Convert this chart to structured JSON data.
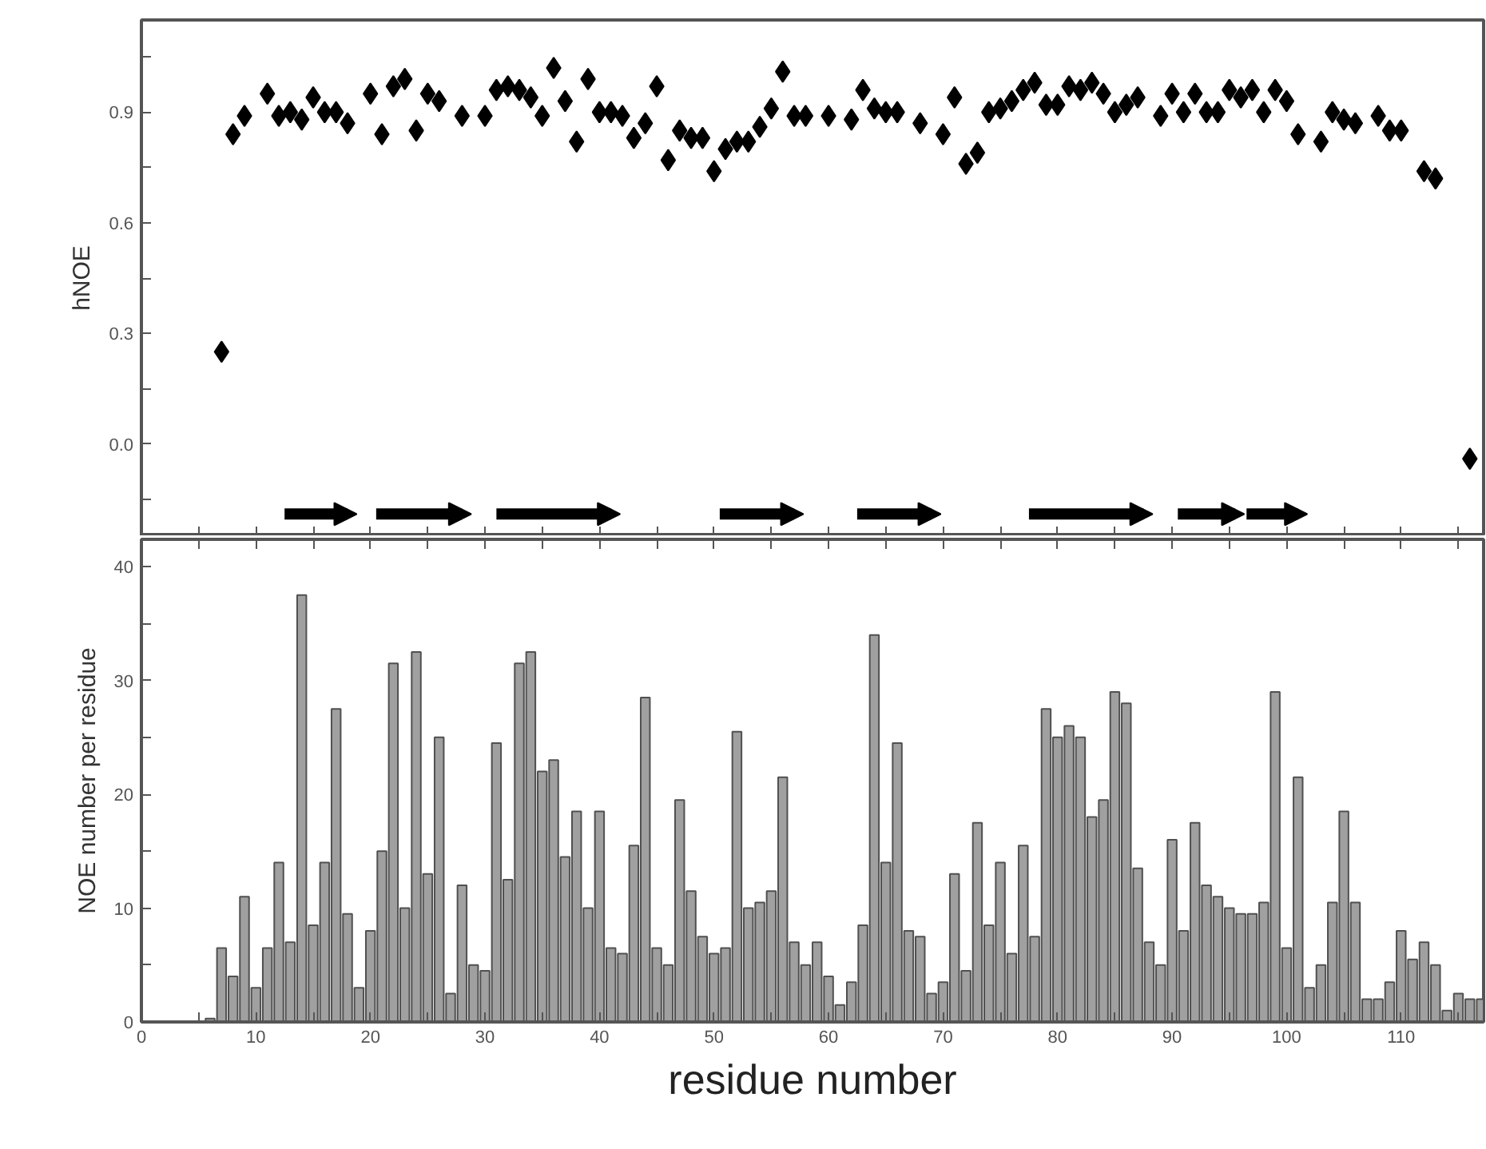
{
  "chart_data": [
    {
      "type": "scatter",
      "ylabel": "hNOE",
      "tick_labels": "y",
      "x": [
        7,
        8,
        9,
        11,
        12,
        13,
        14,
        15,
        16,
        17,
        18,
        20,
        21,
        22,
        23,
        24,
        25,
        26,
        28,
        30,
        31,
        32,
        33,
        34,
        35,
        36,
        37,
        38,
        39,
        40,
        41,
        42,
        43,
        44,
        45,
        46,
        47,
        48,
        49,
        50,
        51,
        52,
        53,
        54,
        55,
        56,
        57,
        58,
        60,
        62,
        63,
        64,
        65,
        66,
        68,
        70,
        71,
        72,
        73,
        74,
        75,
        76,
        77,
        78,
        79,
        80,
        81,
        82,
        83,
        84,
        85,
        86,
        87,
        89,
        90,
        91,
        92,
        93,
        94,
        95,
        96,
        97,
        98,
        99,
        100,
        101,
        103,
        104,
        105,
        106,
        108,
        109,
        110,
        112,
        113,
        116
      ],
      "series": [
        {
          "color": "#000000",
          "marker": "diamond",
          "values": [
            0.25,
            0.84,
            0.89,
            0.95,
            0.89,
            0.9,
            0.88,
            0.94,
            0.9,
            0.9,
            0.87,
            0.95,
            0.84,
            0.97,
            0.99,
            0.85,
            0.95,
            0.93,
            0.89,
            0.89,
            0.96,
            0.97,
            0.96,
            0.94,
            0.89,
            1.02,
            0.93,
            0.82,
            0.99,
            0.9,
            0.9,
            0.89,
            0.83,
            0.87,
            0.97,
            0.77,
            0.85,
            0.83,
            0.83,
            0.74,
            0.8,
            0.82,
            0.82,
            0.86,
            0.91,
            1.01,
            0.89,
            0.89,
            0.89,
            0.88,
            0.96,
            0.91,
            0.9,
            0.9,
            0.87,
            0.84,
            0.94,
            0.76,
            0.79,
            0.9,
            0.91,
            0.93,
            0.96,
            0.98,
            0.92,
            0.92,
            0.97,
            0.96,
            0.98,
            0.95,
            0.9,
            0.92,
            0.94,
            0.89,
            0.95,
            0.9,
            0.95,
            0.9,
            0.9,
            0.96,
            0.94,
            0.96,
            0.9,
            0.96,
            0.93,
            0.84,
            0.82,
            0.9,
            0.88,
            0.87,
            0.89,
            0.85,
            0.85,
            0.74,
            0.72,
            -0.04
          ]
        },
        {
          "type": "line",
          "color": "#000000",
          "marker": "triangle",
          "x": [
            12.5,
            18,
            19,
            20.5,
            28,
            29,
            31,
            41,
            45,
            50.5,
            57,
            60,
            62.5,
            69,
            73,
            77.5,
            87.5,
            89,
            90.5,
            95.5,
            96,
            96.5,
            101
          ],
          "values": [
            -0.19,
            -0.19,
            null,
            -0.19,
            -0.19,
            null,
            -0.19,
            -0.19,
            null,
            -0.19,
            -0.19,
            null,
            -0.19,
            -0.19,
            null,
            -0.19,
            -0.19,
            null,
            -0.19,
            -0.19,
            null,
            -0.19,
            -0.19
          ]
        }
      ],
      "xlim": [
        0,
        117.2
      ],
      "ylim": [
        -0.25,
        1.15
      ],
      "xticks": [
        {
          "value": 0,
          "label": null
        },
        {
          "value": 5,
          "label": null
        },
        {
          "value": 10,
          "label": null
        },
        {
          "value": 15,
          "label": null
        },
        {
          "value": 20,
          "label": null
        },
        {
          "value": 25,
          "label": null
        },
        {
          "value": 30,
          "label": null
        },
        {
          "value": 35,
          "label": null
        },
        {
          "value": 40,
          "label": null
        },
        {
          "value": 45,
          "label": null
        },
        {
          "value": 50,
          "label": null
        },
        {
          "value": 55,
          "label": null
        },
        {
          "value": 60,
          "label": null
        },
        {
          "value": 65,
          "label": null
        },
        {
          "value": 70,
          "label": null
        },
        {
          "value": 75,
          "label": null
        },
        {
          "value": 80,
          "label": null
        },
        {
          "value": 85,
          "label": null
        },
        {
          "value": 90,
          "label": null
        },
        {
          "value": 95,
          "label": null
        },
        {
          "value": 100,
          "label": null
        },
        {
          "value": 105,
          "label": null
        },
        {
          "value": 110,
          "label": null
        },
        {
          "value": 115,
          "label": null
        }
      ],
      "yticks": [
        {
          "value": -0.15,
          "label": null
        },
        {
          "value": 0.0,
          "label": "0.0"
        },
        {
          "value": 0.15,
          "label": null
        },
        {
          "value": 0.3,
          "label": "0.3"
        },
        {
          "value": 0.45,
          "label": null
        },
        {
          "value": 0.6,
          "label": "0.6"
        },
        {
          "value": 0.75,
          "label": null
        },
        {
          "value": 0.9,
          "label": "0.9"
        },
        {
          "value": 1.05,
          "label": null
        }
      ],
      "line_style": "solid"
    },
    {
      "type": "bar",
      "xlabel": "residue number",
      "ylabel": "NOE number per residue",
      "x": [
        6,
        7,
        8,
        9,
        10,
        11,
        12,
        13,
        14,
        15,
        16,
        17,
        18,
        19,
        20,
        21,
        22,
        23,
        24,
        25,
        26,
        27,
        28,
        29,
        30,
        31,
        32,
        33,
        34,
        35,
        36,
        37,
        38,
        39,
        40,
        41,
        42,
        43,
        44,
        45,
        46,
        47,
        48,
        49,
        50,
        51,
        52,
        53,
        54,
        55,
        56,
        57,
        58,
        59,
        60,
        61,
        62,
        63,
        64,
        65,
        66,
        67,
        68,
        69,
        70,
        71,
        72,
        73,
        74,
        75,
        76,
        77,
        78,
        79,
        80,
        81,
        82,
        83,
        84,
        85,
        86,
        87,
        88,
        89,
        90,
        91,
        92,
        93,
        94,
        95,
        96,
        97,
        98,
        99,
        100,
        101,
        102,
        103,
        104,
        105,
        106,
        107,
        108,
        109,
        110,
        111,
        112,
        113,
        114,
        115,
        116,
        117
      ],
      "series": [
        {
          "color": "#a0a0a0",
          "values": [
            0.3,
            6.5,
            4,
            11,
            3,
            6.5,
            14,
            7,
            37.5,
            8.5,
            14,
            27.5,
            9.5,
            3,
            8,
            15,
            31.5,
            10,
            32.5,
            13,
            25,
            2.5,
            12,
            5,
            4.5,
            24.5,
            12.5,
            31.5,
            32.5,
            22,
            23,
            14.5,
            18.5,
            10,
            18.5,
            6.5,
            6,
            15.5,
            28.5,
            6.5,
            5,
            19.5,
            11.5,
            7.5,
            6,
            6.5,
            25.5,
            10,
            10.5,
            11.5,
            21.5,
            7,
            5,
            7,
            4,
            1.5,
            3.5,
            8.5,
            34,
            14,
            24.5,
            8,
            7.5,
            2.5,
            3.5,
            13,
            4.5,
            17.5,
            8.5,
            14,
            6,
            15.5,
            7.5,
            27.5,
            25,
            26,
            25,
            18,
            19.5,
            29,
            28,
            13.5,
            7,
            5,
            16,
            8,
            17.5,
            12,
            11,
            10,
            9.5,
            9.5,
            10.5,
            29,
            6.5,
            21.5,
            3,
            5,
            10.5,
            18.5,
            10.5,
            2,
            2,
            3.5,
            8,
            5.5,
            7,
            5,
            1,
            2.5,
            2,
            2
          ]
        }
      ],
      "xlim": [
        0,
        117.2
      ],
      "ylim": [
        0,
        42.4
      ],
      "xticks": [
        0,
        {
          "value": 5,
          "label": null
        },
        10,
        {
          "value": 15,
          "label": null
        },
        20,
        {
          "value": 25,
          "label": null
        },
        30,
        {
          "value": 35,
          "label": null
        },
        40,
        {
          "value": 45,
          "label": null
        },
        50,
        {
          "value": 55,
          "label": null
        },
        60,
        {
          "value": 65,
          "label": null
        },
        70,
        {
          "value": 75,
          "label": null
        },
        80,
        {
          "value": 85,
          "label": null
        },
        90,
        {
          "value": 95,
          "label": null
        },
        100,
        {
          "value": 105,
          "label": null
        },
        110,
        {
          "value": 115,
          "label": null
        }
      ],
      "yticks": [
        0,
        {
          "value": 5,
          "label": null
        },
        10,
        {
          "value": 15,
          "label": null
        },
        20,
        {
          "value": 25,
          "label": null
        },
        30,
        {
          "value": 35,
          "label": null
        },
        40
      ]
    }
  ]
}
